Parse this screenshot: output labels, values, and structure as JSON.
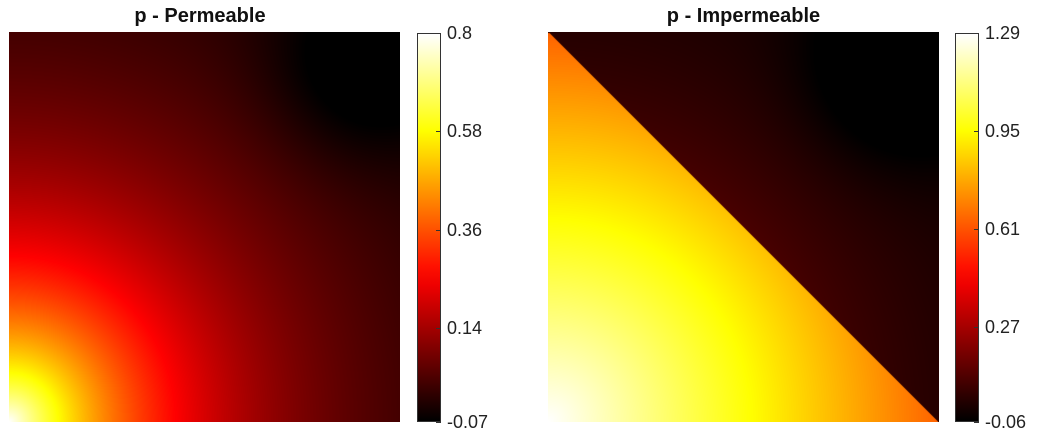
{
  "chart_data": [
    {
      "type": "heatmap",
      "title": "p - Permeable",
      "xlabel": "",
      "ylabel": "",
      "colormap": "hot",
      "colorbar": {
        "min": -0.07,
        "max": 0.8,
        "ticks": [
          0.8,
          0.58,
          0.36,
          0.14,
          -0.07
        ],
        "tick_labels": [
          "0.8",
          "0.58",
          "0.36",
          "0.14",
          "-0.07"
        ]
      },
      "field": {
        "max_value": 0.8,
        "max_location": "bottom-left corner",
        "min_value": -0.07,
        "min_location": "near top-right corner",
        "pattern": "radial decay from bottom-left"
      }
    },
    {
      "type": "heatmap",
      "title": "p - Impermeable",
      "xlabel": "",
      "ylabel": "",
      "colormap": "hot",
      "colorbar": {
        "min": -0.06,
        "max": 1.29,
        "ticks": [
          1.29,
          0.95,
          0.61,
          0.27,
          -0.06
        ],
        "tick_labels": [
          "1.29",
          "0.95",
          "0.61",
          "0.27",
          "-0.06"
        ]
      },
      "field": {
        "max_value": 1.29,
        "max_location": "bottom-left corner",
        "min_value": -0.06,
        "min_location": "near top-right corner",
        "pattern": "radial decay from bottom-left with discontinuity along anti-diagonal",
        "discontinuity": "diagonal from top-left to bottom-right"
      }
    }
  ]
}
